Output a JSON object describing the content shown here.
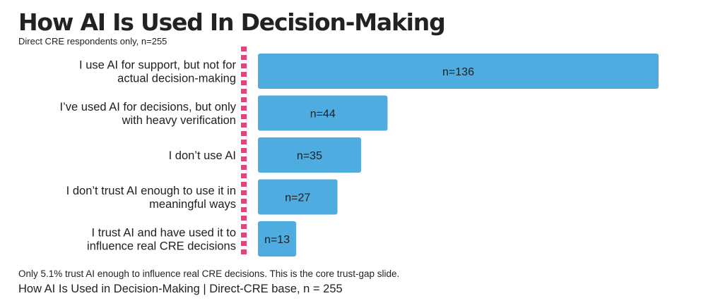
{
  "header": {
    "title": "How AI Is Used In Decision-Making",
    "subtitle": "Direct CRE respondents only, n=255"
  },
  "footer": {
    "note": "Only 5.1% trust AI enough to influence real CRE decisions. This is the core trust-gap slide.",
    "caption": "How AI Is Used in Decision-Making | Direct-CRE base, n = 255"
  },
  "colors": {
    "bar": "#4FACE0",
    "axis_marker": "#E0457B"
  },
  "chart_data": {
    "type": "bar",
    "orientation": "horizontal",
    "categories": [
      [
        "I use AI for support, but not for",
        "actual decision-making"
      ],
      [
        "I’ve used AI for decisions, but only",
        "with heavy verification"
      ],
      [
        "I don’t use AI"
      ],
      [
        "I don’t trust AI enough to use it in",
        "meaningful ways"
      ],
      [
        "I trust AI and have used it to",
        "influence real CRE decisions"
      ]
    ],
    "values": [
      136,
      44,
      35,
      27,
      13
    ],
    "data_labels": [
      "n=136",
      "n=44",
      "n=35",
      "n=27",
      "n=13"
    ],
    "xlim": [
      0,
      136
    ],
    "grid": false,
    "legend": "none"
  }
}
